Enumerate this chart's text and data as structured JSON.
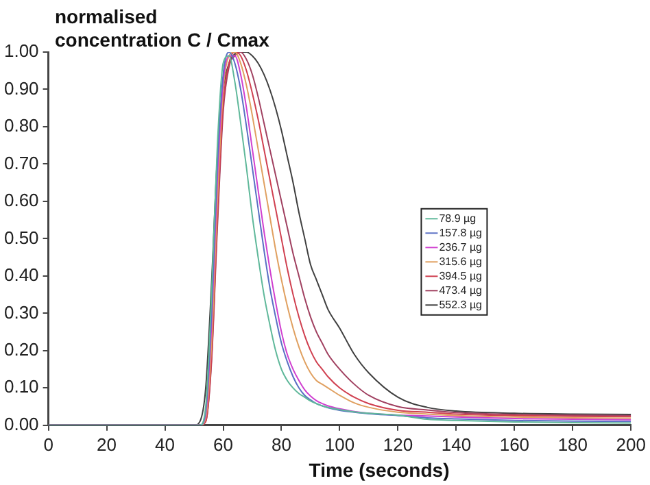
{
  "chart_data": {
    "type": "line",
    "ylabel": "normalised\nconcentration C / Cmax",
    "xlabel": "Time (seconds)",
    "x": [
      0,
      50,
      52,
      54,
      56,
      58,
      60,
      62,
      64,
      66,
      68,
      70,
      72,
      74,
      76,
      78,
      80,
      82,
      84,
      86,
      88,
      90,
      92,
      94,
      96,
      100,
      105,
      110,
      120,
      130,
      140,
      160,
      180,
      200
    ],
    "series": [
      {
        "name": "78.9 µg",
        "color": "#5fb89a",
        "values": [
          0,
          0,
          0,
          0.05,
          0.35,
          0.75,
          0.97,
          0.99,
          0.92,
          0.81,
          0.69,
          0.56,
          0.45,
          0.35,
          0.27,
          0.2,
          0.15,
          0.12,
          0.1,
          0.085,
          0.075,
          0.065,
          0.058,
          0.052,
          0.048,
          0.042,
          0.036,
          0.032,
          0.027,
          0.016,
          0.013,
          0.009,
          0.007,
          0.006
        ]
      },
      {
        "name": "157.8 µg",
        "color": "#5a6fc4",
        "values": [
          0,
          0,
          0,
          0.04,
          0.3,
          0.7,
          0.94,
          1.0,
          0.97,
          0.9,
          0.8,
          0.69,
          0.58,
          0.47,
          0.37,
          0.29,
          0.22,
          0.17,
          0.13,
          0.1,
          0.08,
          0.068,
          0.058,
          0.052,
          0.047,
          0.04,
          0.035,
          0.031,
          0.026,
          0.02,
          0.017,
          0.013,
          0.011,
          0.01
        ]
      },
      {
        "name": "236.7 µg",
        "color": "#d040d0",
        "values": [
          0,
          0,
          0,
          0.03,
          0.27,
          0.66,
          0.92,
          0.99,
          0.99,
          0.94,
          0.85,
          0.74,
          0.63,
          0.52,
          0.42,
          0.33,
          0.25,
          0.19,
          0.15,
          0.12,
          0.095,
          0.078,
          0.066,
          0.058,
          0.052,
          0.044,
          0.037,
          0.032,
          0.027,
          0.025,
          0.022,
          0.018,
          0.016,
          0.015
        ]
      },
      {
        "name": "315.6 µg",
        "color": "#e0a060",
        "values": [
          0,
          0,
          0,
          0.02,
          0.22,
          0.6,
          0.9,
          0.99,
          1.0,
          0.97,
          0.91,
          0.83,
          0.74,
          0.65,
          0.56,
          0.47,
          0.39,
          0.32,
          0.26,
          0.21,
          0.17,
          0.14,
          0.12,
          0.11,
          0.1,
          0.08,
          0.06,
          0.048,
          0.035,
          0.03,
          0.026,
          0.022,
          0.02,
          0.019
        ]
      },
      {
        "name": "394.5 µg",
        "color": "#d04050",
        "values": [
          0,
          0,
          0,
          0.01,
          0.18,
          0.55,
          0.86,
          0.97,
          1.0,
          0.99,
          0.95,
          0.89,
          0.82,
          0.74,
          0.66,
          0.58,
          0.5,
          0.42,
          0.35,
          0.29,
          0.24,
          0.2,
          0.17,
          0.15,
          0.13,
          0.1,
          0.075,
          0.058,
          0.04,
          0.035,
          0.03,
          0.026,
          0.024,
          0.023
        ]
      },
      {
        "name": "473.4 µg",
        "color": "#a04060",
        "values": [
          0,
          0,
          0,
          0.01,
          0.17,
          0.53,
          0.84,
          0.96,
          0.99,
          1.0,
          0.98,
          0.94,
          0.88,
          0.81,
          0.74,
          0.67,
          0.6,
          0.53,
          0.46,
          0.4,
          0.34,
          0.29,
          0.25,
          0.22,
          0.19,
          0.15,
          0.11,
          0.08,
          0.05,
          0.041,
          0.034,
          0.029,
          0.027,
          0.026
        ]
      },
      {
        "name": "552.3 µg",
        "color": "#404040",
        "values": [
          0,
          0,
          0.01,
          0.1,
          0.38,
          0.72,
          0.9,
          0.97,
          0.995,
          1.0,
          1.0,
          0.99,
          0.97,
          0.94,
          0.9,
          0.85,
          0.79,
          0.72,
          0.65,
          0.57,
          0.5,
          0.43,
          0.39,
          0.35,
          0.31,
          0.26,
          0.19,
          0.14,
          0.075,
          0.048,
          0.038,
          0.032,
          0.03,
          0.029
        ]
      }
    ],
    "xlim": [
      0,
      200
    ],
    "xticks": [
      0,
      20,
      40,
      60,
      80,
      100,
      120,
      140,
      160,
      180,
      200
    ],
    "ylim": [
      0,
      1
    ],
    "yticks": [
      {
        "value": 0,
        "label": "0.00"
      },
      {
        "value": 0.1,
        "label": "0.10"
      },
      {
        "value": 0.2,
        "label": "0.20"
      },
      {
        "value": 0.3,
        "label": "0.30"
      },
      {
        "value": 0.4,
        "label": "0.40"
      },
      {
        "value": 0.5,
        "label": "0.50"
      },
      {
        "value": 0.6,
        "label": "0.60"
      },
      {
        "value": 0.7,
        "label": "0.70"
      },
      {
        "value": 0.8,
        "label": "0.80"
      },
      {
        "value": 0.9,
        "label": "0.90"
      },
      {
        "value": 1,
        "label": "1.00"
      }
    ],
    "grid": false,
    "legend": "center right",
    "marker": "none",
    "line_style": "solid"
  }
}
